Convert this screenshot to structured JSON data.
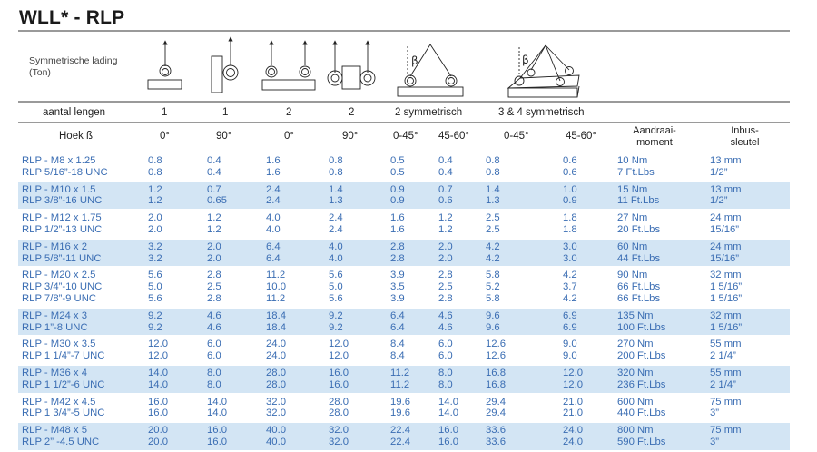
{
  "title": "WLL* - RLP",
  "load_label_line1": "Symmetrische lading",
  "load_label_line2": "(Ton)",
  "legs_row": {
    "label": "aantal lengen",
    "values": [
      "1",
      "1",
      "2",
      "2",
      "2 symmetrisch",
      "3 & 4 symmetrisch"
    ]
  },
  "angle_row": {
    "label": "Hoek ß",
    "values": [
      "0°",
      "90°",
      "0°",
      "90°",
      "0-45°",
      "45-60°",
      "0-45°",
      "45-60°"
    ],
    "torque_line1": "Aandraai-",
    "torque_line2": "moment",
    "key_line1": "Inbus-",
    "key_line2": "sleutel"
  },
  "beta_symbol": "β",
  "colors": {
    "text_blue": "#3a6db3",
    "band": "#d3e5f4",
    "rule": "#9a9a9a"
  },
  "groups": [
    {
      "rows": [
        [
          "RLP - M8 x 1.25",
          "0.8",
          "0.4",
          "1.6",
          "0.8",
          "0.5",
          "0.4",
          "0.8",
          "0.6",
          "10 Nm",
          "13 mm"
        ],
        [
          "RLP 5/16”-18 UNC",
          "0.8",
          "0.4",
          "1.6",
          "0.8",
          "0.5",
          "0.4",
          "0.8",
          "0.6",
          "7 Ft.Lbs",
          "1/2”"
        ]
      ]
    },
    {
      "rows": [
        [
          "RLP - M10 x 1.5",
          "1.2",
          "0.7",
          "2.4",
          "1.4",
          "0.9",
          "0.7",
          "1.4",
          "1.0",
          "15 Nm",
          "13 mm"
        ],
        [
          "RLP 3/8”-16 UNC",
          "1.2",
          "0.65",
          "2.4",
          "1.3",
          "0.9",
          "0.6",
          "1.3",
          "0.9",
          "11 Ft.Lbs",
          "1/2”"
        ]
      ]
    },
    {
      "rows": [
        [
          "RLP - M12 x 1.75",
          "2.0",
          "1.2",
          "4.0",
          "2.4",
          "1.6",
          "1.2",
          "2.5",
          "1.8",
          "27 Nm",
          "24 mm"
        ],
        [
          "RLP 1/2”-13 UNC",
          "2.0",
          "1.2",
          "4.0",
          "2.4",
          "1.6",
          "1.2",
          "2.5",
          "1.8",
          "20 Ft.Lbs",
          "15/16”"
        ]
      ]
    },
    {
      "rows": [
        [
          "RLP - M16 x 2",
          "3.2",
          "2.0",
          "6.4",
          "4.0",
          "2.8",
          "2.0",
          "4.2",
          "3.0",
          "60 Nm",
          "24 mm"
        ],
        [
          "RLP 5/8”-11 UNC",
          "3.2",
          "2.0",
          "6.4",
          "4.0",
          "2.8",
          "2.0",
          "4.2",
          "3.0",
          "44 Ft.Lbs",
          "15/16”"
        ]
      ]
    },
    {
      "rows": [
        [
          "RLP - M20 x 2.5",
          "5.6",
          "2.8",
          "11.2",
          "5.6",
          "3.9",
          "2.8",
          "5.8",
          "4.2",
          "90 Nm",
          "32 mm"
        ],
        [
          "RLP 3/4”-10 UNC",
          "5.0",
          "2.5",
          "10.0",
          "5.0",
          "3.5",
          "2.5",
          "5.2",
          "3.7",
          "66 Ft.Lbs",
          "1 5/16”"
        ],
        [
          "RLP 7/8”-9 UNC",
          "5.6",
          "2.8",
          "11.2",
          "5.6",
          "3.9",
          "2.8",
          "5.8",
          "4.2",
          "66 Ft.Lbs",
          "1 5/16”"
        ]
      ]
    },
    {
      "rows": [
        [
          "RLP - M24 x 3",
          "9.2",
          "4.6",
          "18.4",
          "9.2",
          "6.4",
          "4.6",
          "9.6",
          "6.9",
          "135 Nm",
          "32 mm"
        ],
        [
          "RLP 1”-8 UNC",
          "9.2",
          "4.6",
          "18.4",
          "9.2",
          "6.4",
          "4.6",
          "9.6",
          "6.9",
          "100 Ft.Lbs",
          "1 5/16”"
        ]
      ]
    },
    {
      "rows": [
        [
          "RLP - M30 x 3.5",
          "12.0",
          "6.0",
          "24.0",
          "12.0",
          "8.4",
          "6.0",
          "12.6",
          "9.0",
          "270 Nm",
          "55 mm"
        ],
        [
          "RLP 1 1/4”-7 UNC",
          "12.0",
          "6.0",
          "24.0",
          "12.0",
          "8.4",
          "6.0",
          "12.6",
          "9.0",
          "200 Ft.Lbs",
          "2  1/4”"
        ]
      ]
    },
    {
      "rows": [
        [
          "RLP - M36 x 4",
          "14.0",
          "8.0",
          "28.0",
          "16.0",
          "11.2",
          "8.0",
          "16.8",
          "12.0",
          "320 Nm",
          "55 mm"
        ],
        [
          "RLP 1 1/2”-6 UNC",
          "14.0",
          "8.0",
          "28.0",
          "16.0",
          "11.2",
          "8.0",
          "16.8",
          "12.0",
          "236 Ft.Lbs",
          "2 1/4”"
        ]
      ]
    },
    {
      "rows": [
        [
          "RLP - M42 x 4.5",
          "16.0",
          "14.0",
          "32.0",
          "28.0",
          "19.6",
          "14.0",
          "29.4",
          "21.0",
          "600 Nm",
          "75 mm"
        ],
        [
          "RLP 1 3/4”-5 UNC",
          "16.0",
          "14.0",
          "32.0",
          "28.0",
          "19.6",
          "14.0",
          "29.4",
          "21.0",
          "440 Ft.Lbs",
          "3”"
        ]
      ]
    },
    {
      "rows": [
        [
          "RLP - M48 x 5",
          "20.0",
          "16.0",
          "40.0",
          "32.0",
          "22.4",
          "16.0",
          "33.6",
          "24.0",
          "800 Nm",
          "75 mm"
        ],
        [
          "RLP 2” -4.5 UNC",
          "20.0",
          "16.0",
          "40.0",
          "32.0",
          "22.4",
          "16.0",
          "33.6",
          "24.0",
          "590 Ft.Lbs",
          "3”"
        ]
      ]
    }
  ]
}
